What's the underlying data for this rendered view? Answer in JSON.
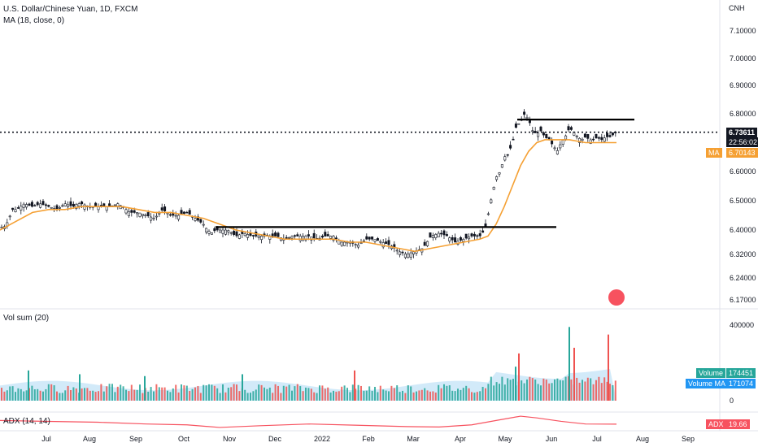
{
  "header": {
    "symbol": "U.S. Dollar/Chinese Yuan, 1D, FXCM",
    "indicator": "MA (18, close, 0)"
  },
  "price_axis": {
    "currency": "CNH",
    "ticks": [
      "7.10000",
      "7.00000",
      "6.90000",
      "6.80000",
      "6.60000",
      "6.50000",
      "6.40000",
      "6.32000",
      "6.24000",
      "6.17000"
    ]
  },
  "price_tags": {
    "last_price": "6.73611",
    "countdown": "22:56:02",
    "ma_label": "MA",
    "ma_value": "6.70143"
  },
  "volume_pane": {
    "title": "Vol sum (20)",
    "ticks": [
      "400000",
      "0"
    ],
    "volume_label": "Volume",
    "volume_value": "174451",
    "volume_ma_label": "Volume MA",
    "volume_ma_value": "171074"
  },
  "adx_pane": {
    "title": "ADX (14, 14)",
    "label": "ADX",
    "value": "19.66"
  },
  "time_axis": [
    "Jul",
    "Aug",
    "Sep",
    "Oct",
    "Nov",
    "Dec",
    "2022",
    "Feb",
    "Mar",
    "Apr",
    "May",
    "Jun",
    "Jul",
    "Aug",
    "Sep"
  ],
  "colors": {
    "up": "#26a69a",
    "down": "#ef5350",
    "ma_line": "#f5a033",
    "vol_ma_area": "#bfe1f6",
    "adx_line": "#f7525f",
    "volume_tag": "#26a69a",
    "volume_ma_tag": "#2196f3",
    "ma_tag": "#f5a033"
  },
  "chart_data": [
    {
      "type": "candlestick",
      "title": "U.S. Dollar/Chinese Yuan, 1D, FXCM",
      "ylim": [
        6.17,
        7.1
      ],
      "x_ticks": [
        "Jul",
        "Aug",
        "Sep",
        "Oct",
        "Nov",
        "Dec",
        "2022",
        "Feb",
        "Mar",
        "Apr",
        "May",
        "Jun",
        "Jul",
        "Aug",
        "Sep"
      ],
      "y_ticks": [
        7.1,
        7.0,
        6.9,
        6.8,
        6.6,
        6.5,
        6.4,
        6.32,
        6.24,
        6.17
      ],
      "last_price": 6.73611,
      "close_path": [
        [
          0,
          6.41
        ],
        [
          5,
          6.41
        ],
        [
          10,
          6.43
        ],
        [
          15,
          6.47
        ],
        [
          20,
          6.47
        ],
        [
          30,
          6.49
        ],
        [
          40,
          6.48
        ],
        [
          50,
          6.49
        ],
        [
          60,
          6.48
        ],
        [
          70,
          6.47
        ],
        [
          80,
          6.49
        ],
        [
          90,
          6.48
        ],
        [
          95,
          6.49
        ],
        [
          100,
          6.49
        ],
        [
          110,
          6.48
        ],
        [
          125,
          6.48
        ],
        [
          135,
          6.48
        ],
        [
          145,
          6.49
        ],
        [
          150,
          6.48
        ],
        [
          160,
          6.46
        ],
        [
          170,
          6.46
        ],
        [
          180,
          6.45
        ],
        [
          190,
          6.44
        ],
        [
          200,
          6.47
        ],
        [
          210,
          6.45
        ],
        [
          220,
          6.45
        ],
        [
          230,
          6.46
        ],
        [
          240,
          6.44
        ],
        [
          250,
          6.42
        ],
        [
          255,
          6.4
        ],
        [
          260,
          6.39
        ],
        [
          265,
          6.4
        ],
        [
          270,
          6.4
        ],
        [
          280,
          6.4
        ],
        [
          290,
          6.38
        ],
        [
          300,
          6.39
        ],
        [
          310,
          6.38
        ],
        [
          320,
          6.38
        ],
        [
          330,
          6.38
        ],
        [
          340,
          6.38
        ],
        [
          350,
          6.37
        ],
        [
          360,
          6.38
        ],
        [
          370,
          6.38
        ],
        [
          380,
          6.38
        ],
        [
          390,
          6.37
        ],
        [
          400,
          6.38
        ],
        [
          410,
          6.38
        ],
        [
          420,
          6.36
        ],
        [
          430,
          6.36
        ],
        [
          440,
          6.35
        ],
        [
          450,
          6.37
        ],
        [
          460,
          6.37
        ],
        [
          470,
          6.36
        ],
        [
          480,
          6.35
        ],
        [
          490,
          6.33
        ],
        [
          500,
          6.32
        ],
        [
          510,
          6.33
        ],
        [
          520,
          6.34
        ],
        [
          530,
          6.38
        ],
        [
          540,
          6.39
        ],
        [
          550,
          6.38
        ],
        [
          560,
          6.36
        ],
        [
          570,
          6.37
        ],
        [
          580,
          6.38
        ],
        [
          590,
          6.38
        ],
        [
          596,
          6.4
        ],
        [
          600,
          6.45
        ],
        [
          605,
          6.52
        ],
        [
          610,
          6.58
        ],
        [
          615,
          6.6
        ],
        [
          620,
          6.65
        ],
        [
          625,
          6.66
        ],
        [
          630,
          6.7
        ],
        [
          635,
          6.76
        ],
        [
          640,
          6.77
        ],
        [
          645,
          6.8
        ],
        [
          650,
          6.78
        ],
        [
          655,
          6.74
        ],
        [
          660,
          6.73
        ],
        [
          665,
          6.74
        ],
        [
          670,
          6.72
        ],
        [
          675,
          6.71
        ],
        [
          680,
          6.69
        ],
        [
          685,
          6.67
        ],
        [
          690,
          6.7
        ],
        [
          695,
          6.72
        ],
        [
          700,
          6.75
        ],
        [
          705,
          6.74
        ],
        [
          710,
          6.72
        ],
        [
          715,
          6.71
        ],
        [
          720,
          6.72
        ],
        [
          725,
          6.71
        ],
        [
          730,
          6.71
        ],
        [
          735,
          6.72
        ],
        [
          740,
          6.71
        ],
        [
          745,
          6.72
        ],
        [
          750,
          6.72
        ],
        [
          755,
          6.73
        ],
        [
          758,
          6.736
        ]
      ],
      "ma_path": [
        [
          0,
          6.4
        ],
        [
          20,
          6.43
        ],
        [
          40,
          6.46
        ],
        [
          60,
          6.47
        ],
        [
          80,
          6.47
        ],
        [
          100,
          6.48
        ],
        [
          120,
          6.48
        ],
        [
          150,
          6.48
        ],
        [
          170,
          6.47
        ],
        [
          190,
          6.46
        ],
        [
          210,
          6.46
        ],
        [
          230,
          6.45
        ],
        [
          250,
          6.44
        ],
        [
          270,
          6.42
        ],
        [
          290,
          6.4
        ],
        [
          310,
          6.39
        ],
        [
          330,
          6.38
        ],
        [
          350,
          6.37
        ],
        [
          370,
          6.37
        ],
        [
          390,
          6.37
        ],
        [
          410,
          6.37
        ],
        [
          430,
          6.36
        ],
        [
          450,
          6.36
        ],
        [
          470,
          6.35
        ],
        [
          490,
          6.34
        ],
        [
          510,
          6.33
        ],
        [
          530,
          6.34
        ],
        [
          550,
          6.35
        ],
        [
          570,
          6.36
        ],
        [
          590,
          6.37
        ],
        [
          600,
          6.38
        ],
        [
          610,
          6.42
        ],
        [
          620,
          6.48
        ],
        [
          630,
          6.55
        ],
        [
          640,
          6.62
        ],
        [
          650,
          6.67
        ],
        [
          660,
          6.7
        ],
        [
          670,
          6.71
        ],
        [
          680,
          6.71
        ],
        [
          700,
          6.71
        ],
        [
          720,
          6.7
        ],
        [
          740,
          6.7
        ],
        [
          758,
          6.7
        ]
      ],
      "resistance_levels": [
        6.78,
        6.41
      ]
    },
    {
      "type": "bar",
      "title": "Vol sum (20)",
      "ylim": [
        0,
        450000
      ],
      "y_ticks": [
        400000,
        0
      ],
      "latest_volume": 174451,
      "latest_volume_ma": 171074,
      "spikes": [
        [
          35,
          160000,
          "up"
        ],
        [
          98,
          140000,
          "up"
        ],
        [
          178,
          130000,
          "up"
        ],
        [
          298,
          140000,
          "up"
        ],
        [
          436,
          160000,
          "down"
        ],
        [
          634,
          180000,
          "up"
        ],
        [
          638,
          250000,
          "down"
        ],
        [
          700,
          390000,
          "up"
        ],
        [
          706,
          280000,
          "down"
        ],
        [
          748,
          350000,
          "down"
        ]
      ]
    },
    {
      "type": "line",
      "title": "ADX (14, 14)",
      "latest": 19.66,
      "path": [
        [
          0,
          28
        ],
        [
          60,
          26
        ],
        [
          120,
          24
        ],
        [
          180,
          20
        ],
        [
          230,
          18
        ],
        [
          270,
          12
        ],
        [
          320,
          16
        ],
        [
          380,
          20
        ],
        [
          440,
          17
        ],
        [
          500,
          14
        ],
        [
          540,
          13
        ],
        [
          580,
          18
        ],
        [
          610,
          28
        ],
        [
          640,
          38
        ],
        [
          660,
          34
        ],
        [
          690,
          26
        ],
        [
          720,
          20
        ],
        [
          758,
          19.66
        ]
      ]
    }
  ]
}
